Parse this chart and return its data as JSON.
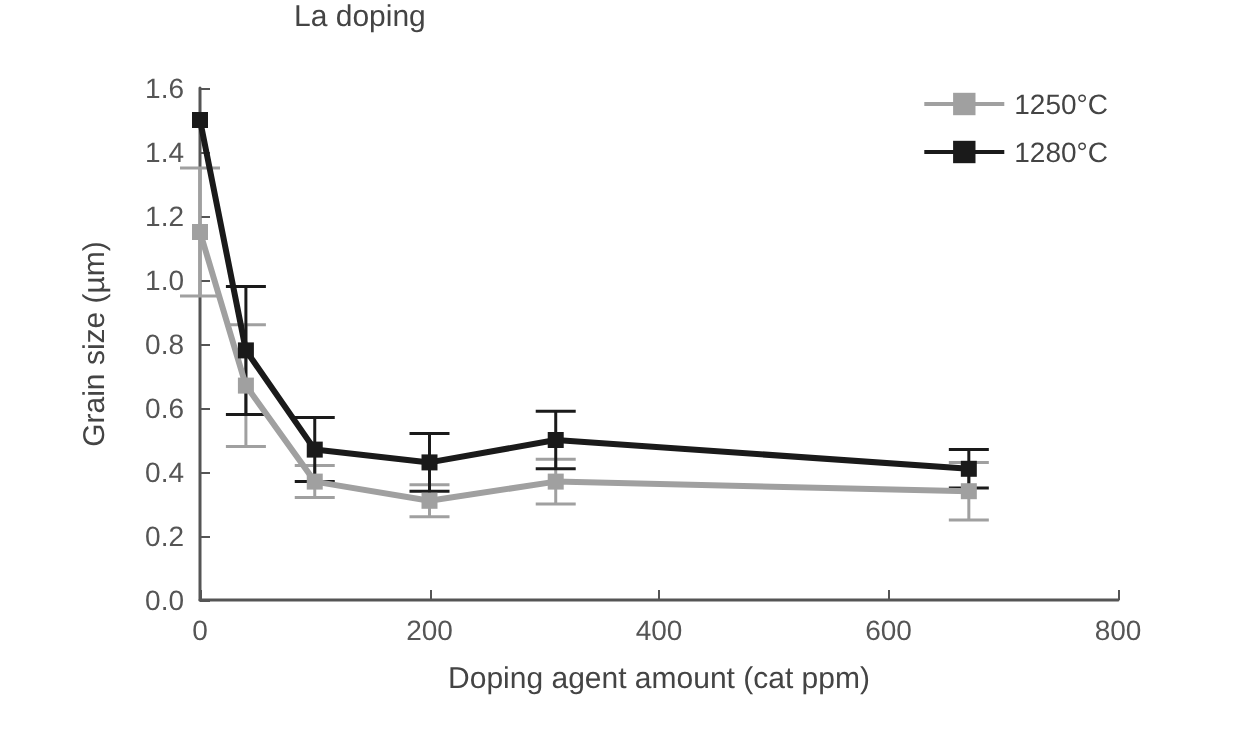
{
  "chart_data": {
    "type": "line",
    "title": "La doping",
    "xlabel": "Doping agent amount (cat ppm)",
    "ylabel": "Grain size (µm)",
    "x": [
      0,
      40,
      100,
      200,
      310,
      670
    ],
    "series": [
      {
        "name": "1250°C",
        "color": "#a0a0a0",
        "values": [
          1.15,
          0.67,
          0.37,
          0.31,
          0.37,
          0.34
        ],
        "errors": [
          0.2,
          0.19,
          0.05,
          0.05,
          0.07,
          0.09
        ]
      },
      {
        "name": "1280°C",
        "color": "#1a1a1a",
        "values": [
          1.5,
          0.78,
          0.47,
          0.43,
          0.5,
          0.41
        ],
        "errors": [
          null,
          0.2,
          0.1,
          0.09,
          0.09,
          0.06
        ]
      }
    ],
    "xlim": [
      0,
      800
    ],
    "xticks": [
      0,
      200,
      400,
      600,
      800
    ],
    "ylim": [
      0,
      1.6
    ],
    "yticks": [
      {
        "value": 0,
        "label": "0.0"
      },
      0.2,
      0.4,
      0.6,
      0.8,
      {
        "value": 1,
        "label": "1.0"
      },
      1.2,
      1.4,
      1.6
    ],
    "grid": false,
    "legend": "top right",
    "marker": "square",
    "line_style": "solid"
  }
}
